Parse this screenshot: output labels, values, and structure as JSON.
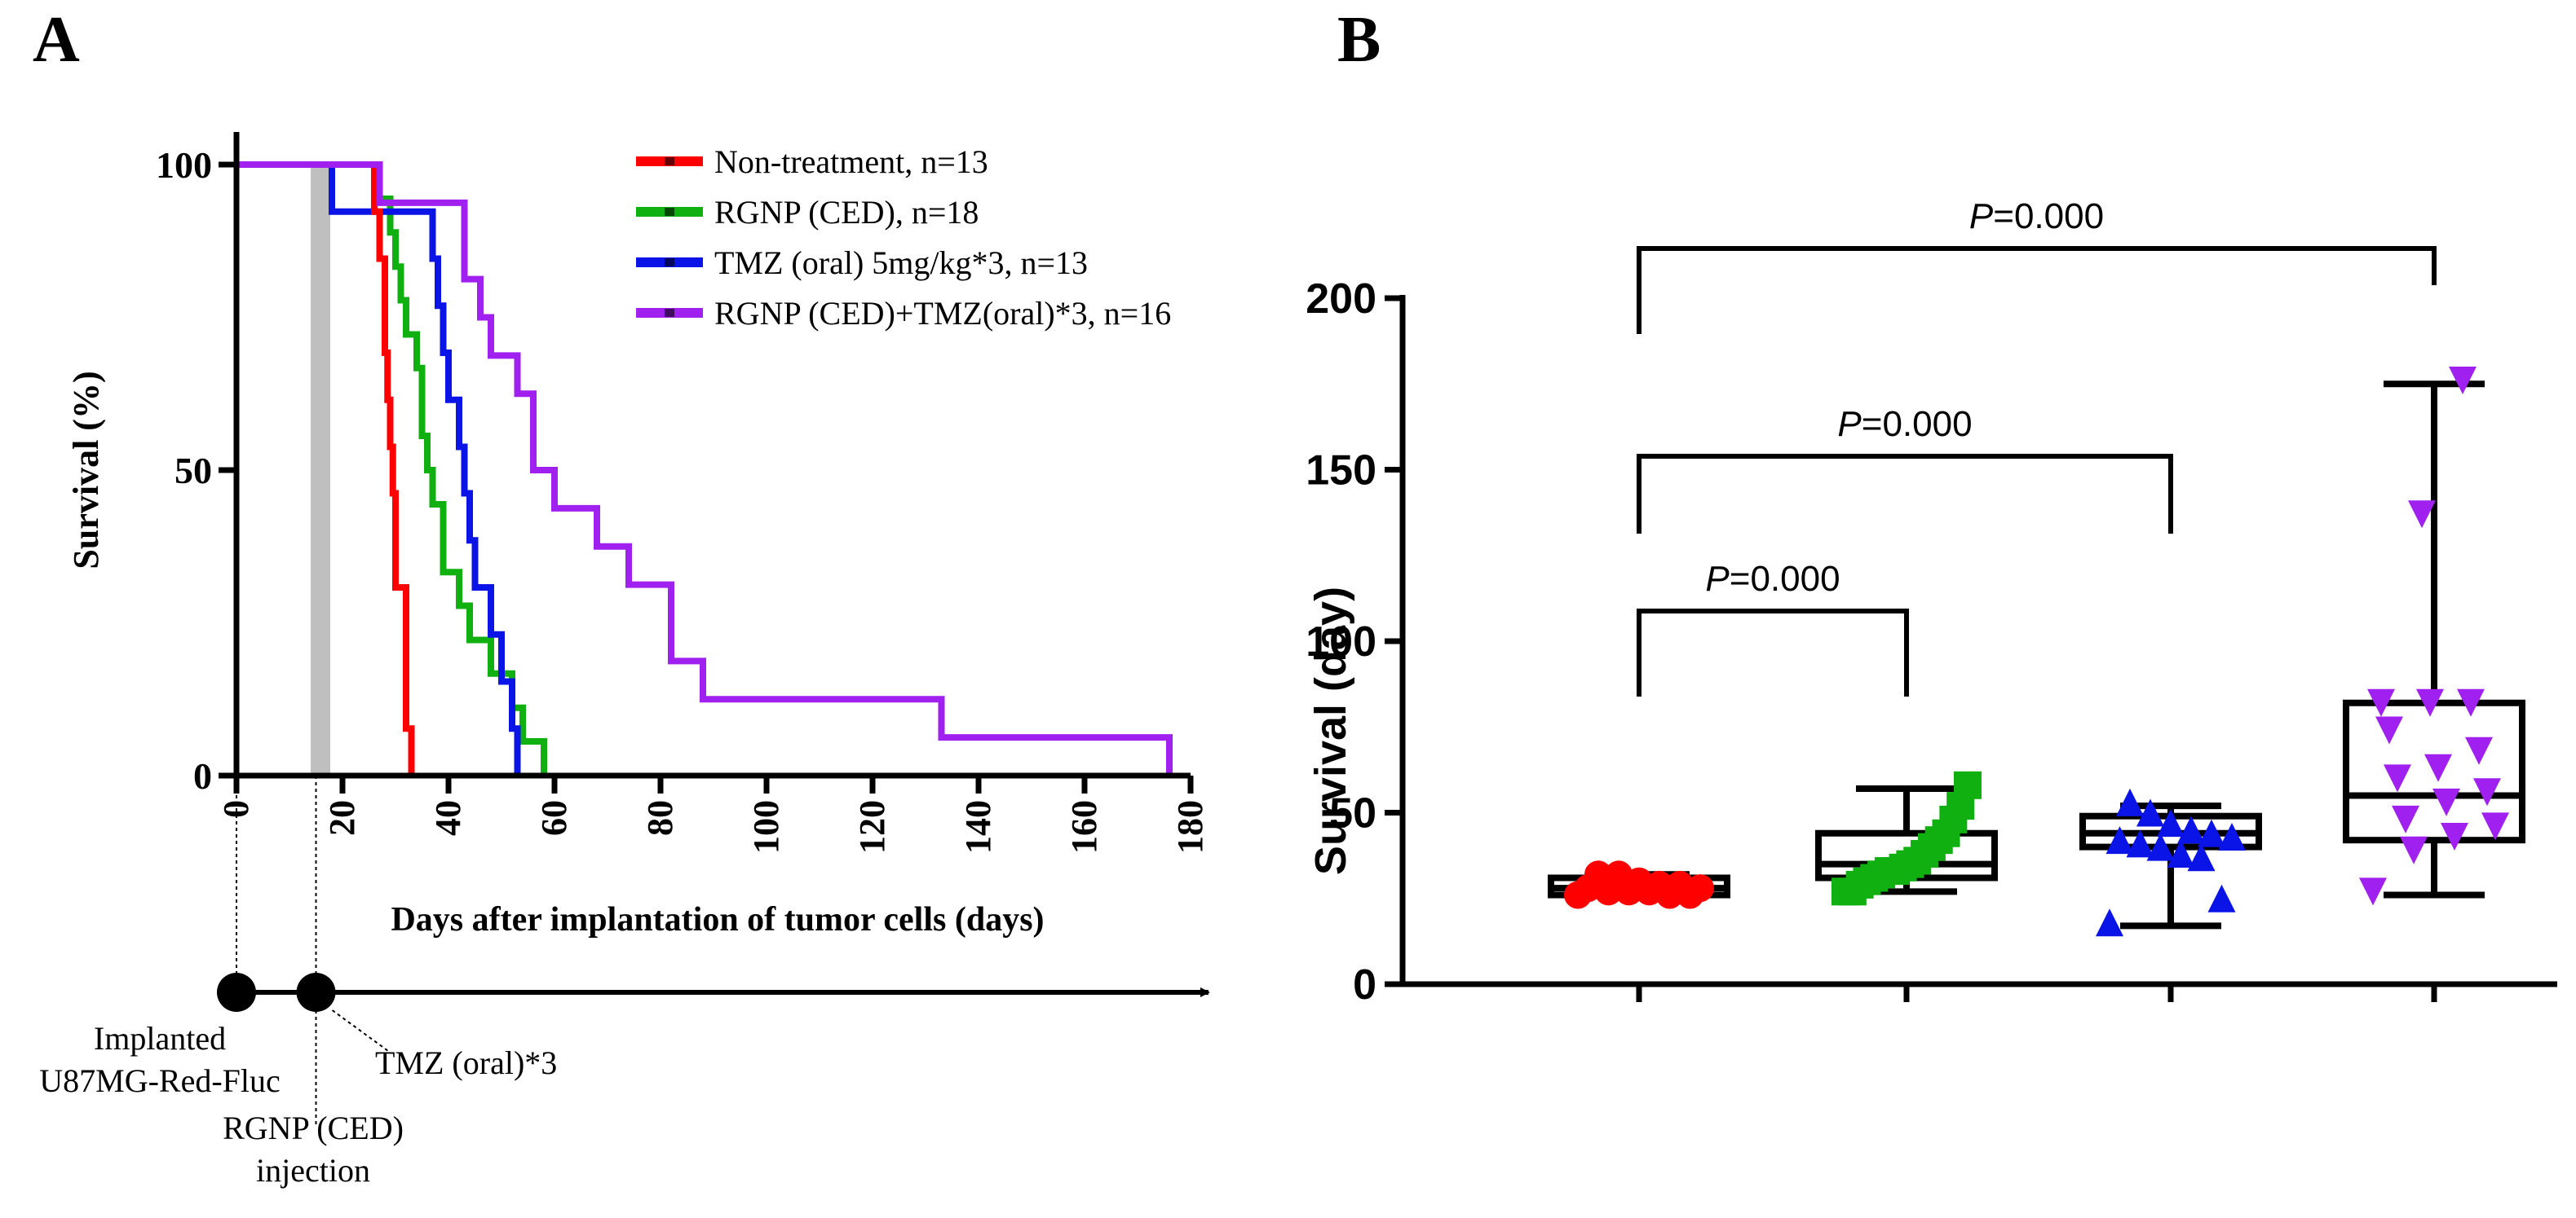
{
  "colors": {
    "non_treatment": "#ff0000",
    "rgnp": "#10b010",
    "tmz": "#0a14e6",
    "combo": "#a020f0",
    "shade": "#bfbfbf",
    "axis": "#000000"
  },
  "chart_data": [
    {
      "panel": "A",
      "type": "line",
      "subtype": "kaplan-meier step",
      "ylabel": "Survival (%)",
      "xlabel": "Days after implantation of tumor cells (days)",
      "xlim": [
        0,
        180
      ],
      "ylim": [
        0,
        100
      ],
      "xticks": [
        0,
        20,
        40,
        60,
        80,
        100,
        120,
        140,
        160,
        180
      ],
      "yticks": [
        0,
        50,
        100
      ],
      "shaded_day": 16,
      "legend_position": "top-right",
      "series": [
        {
          "name": "Non-treatment, n=13",
          "color_key": "non_treatment",
          "x": [
            0,
            26,
            27,
            28,
            28.5,
            29,
            29.5,
            30,
            31,
            32,
            33
          ],
          "y": [
            100,
            92.3,
            84.6,
            69.2,
            61.5,
            53.8,
            46.2,
            30.8,
            30.8,
            7.7,
            0
          ]
        },
        {
          "name": "RGNP (CED), n=18",
          "color_key": "rgnp",
          "x": [
            0,
            27,
            29,
            30,
            31,
            32,
            33,
            34,
            35,
            36,
            37,
            38,
            39,
            40,
            42,
            44,
            46,
            48,
            50,
            52,
            54,
            56,
            58
          ],
          "y": [
            100,
            94.4,
            88.9,
            83.3,
            77.8,
            72.2,
            72.2,
            66.7,
            55.6,
            50,
            44.4,
            44.4,
            33.3,
            33.3,
            27.8,
            22.2,
            22.2,
            16.7,
            16.7,
            11.1,
            5.6,
            5.6,
            0
          ]
        },
        {
          "name": "TMZ (oral) 5mg/kg*3, n=13",
          "color_key": "tmz",
          "x": [
            0,
            18,
            25,
            37,
            38,
            39,
            40,
            41,
            42,
            43,
            44,
            45,
            46,
            47,
            48,
            50,
            51,
            52,
            53
          ],
          "y": [
            100,
            92.3,
            92.3,
            84.6,
            76.9,
            69.2,
            61.5,
            61.5,
            53.8,
            46.2,
            38.5,
            30.8,
            30.8,
            30.8,
            23.1,
            15.4,
            15.4,
            7.7,
            0
          ]
        },
        {
          "name": "RGNP (CED)+TMZ(oral)*3, n=16",
          "color_key": "combo",
          "x": [
            0,
            27,
            39,
            43,
            46,
            48,
            53,
            56,
            60,
            63,
            68,
            74,
            82,
            88,
            133,
            176
          ],
          "y": [
            100,
            93.75,
            93.75,
            81.25,
            75,
            68.75,
            62.5,
            50,
            43.75,
            43.75,
            37.5,
            31.25,
            18.75,
            12.5,
            6.25,
            0
          ]
        }
      ],
      "timeline": {
        "events": [
          {
            "day": 0,
            "label_lines": [
              "Implanted",
              "U87MG-Red-Fluc"
            ]
          },
          {
            "day": 15,
            "label_lines": [
              "RGNP (CED)",
              "injection"
            ]
          },
          {
            "day": 16,
            "label_lines": [
              "TMZ (oral)*3"
            ]
          }
        ]
      }
    },
    {
      "panel": "B",
      "type": "scatter",
      "subtype": "box-whisker with points",
      "ylabel": "Survival (day)",
      "ylim": [
        0,
        200
      ],
      "yticks": [
        0,
        50,
        100,
        150,
        200
      ],
      "groups": [
        {
          "name": "Non-treatment",
          "color_key": "non_treatment",
          "marker": "circle",
          "values": [
            26,
            26,
            26,
            27,
            27,
            27,
            28,
            28,
            29,
            29,
            30,
            32,
            32
          ],
          "box": {
            "min": 26,
            "q1": 26,
            "median": 28,
            "q3": 31,
            "max": 32
          }
        },
        {
          "name": "RGNP (CED)",
          "color_key": "rgnp",
          "marker": "square",
          "values": [
            27,
            27,
            29,
            30,
            31,
            32,
            33,
            33,
            34,
            35,
            36,
            38,
            40,
            42,
            44,
            48,
            52,
            58
          ],
          "box": {
            "min": 27,
            "q1": 31,
            "median": 35,
            "q3": 44,
            "max": 57
          }
        },
        {
          "name": "TMZ (oral) 5mg/kg*3",
          "color_key": "tmz",
          "marker": "triangle-up",
          "values": [
            18,
            25,
            37,
            38,
            40,
            41,
            42,
            43,
            44,
            45,
            47,
            50,
            53
          ],
          "box": {
            "min": 17,
            "q1": 40,
            "median": 44,
            "q3": 49,
            "max": 52
          }
        },
        {
          "name": "RGNP (CED)+TMZ(oral)*3",
          "color_key": "combo",
          "marker": "triangle-down",
          "values": [
            27,
            39,
            43,
            46,
            48,
            53,
            56,
            60,
            63,
            68,
            74,
            82,
            82,
            82,
            137,
            176
          ],
          "box": {
            "min": 26,
            "q1": 42,
            "median": 55,
            "q3": 82,
            "max": 175
          }
        }
      ],
      "comparisons": [
        {
          "from": 0,
          "to": 3,
          "label": "=0.000",
          "level": 3
        },
        {
          "from": 0,
          "to": 2,
          "label": "=0.000",
          "level": 2
        },
        {
          "from": 0,
          "to": 1,
          "label": "=0.000",
          "level": 1
        }
      ]
    }
  ],
  "panels": {
    "a_label": "A",
    "b_label": "B"
  },
  "pvalue_prefix": "P"
}
